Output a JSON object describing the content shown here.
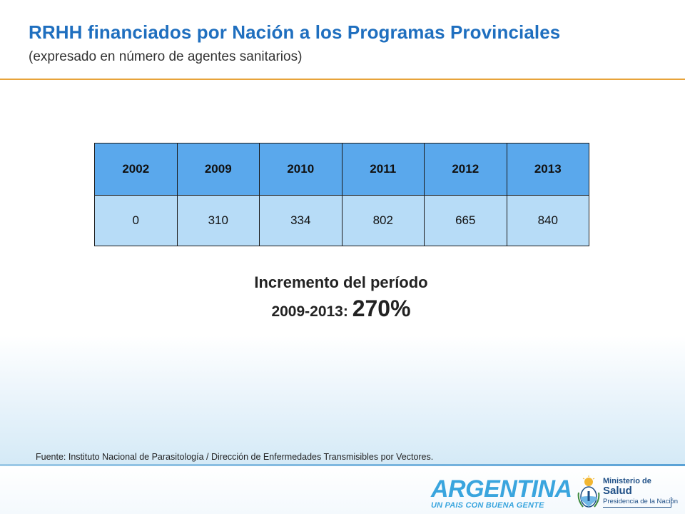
{
  "header": {
    "title": "RRHH financiados por Nación a los Programas Provinciales",
    "subtitle": "(expresado en número de agentes sanitarios)"
  },
  "table": {
    "years": [
      "2002",
      "2009",
      "2010",
      "2011",
      "2012",
      "2013"
    ],
    "values": [
      "0",
      "310",
      "334",
      "802",
      "665",
      "840"
    ]
  },
  "increment": {
    "line1": "Incremento del período",
    "period": "2009-2013:",
    "percent": "270%"
  },
  "footer": {
    "source": "Fuente: Instituto Nacional de Parasitología / Dirección de Enfermedades Transmisibles por Vectores.",
    "argentina_logo": {
      "word": "ARGENTINA",
      "tagline": "UN PAIS CON BUENA GENTE"
    },
    "ministerio_logo": {
      "line1": "Ministerio de",
      "line2": "Salud",
      "line3": "Presidencia de la Nación"
    }
  },
  "colors": {
    "title": "#1f6fbf",
    "rule": "#e8a33a",
    "table_header": "#5aa8ec",
    "table_values": "#b7dcf7",
    "logo_blue": "#3aa5de",
    "ministerio_blue": "#1f4f86"
  },
  "icons": {
    "seal": "argentina-coat-of-arms-icon"
  }
}
